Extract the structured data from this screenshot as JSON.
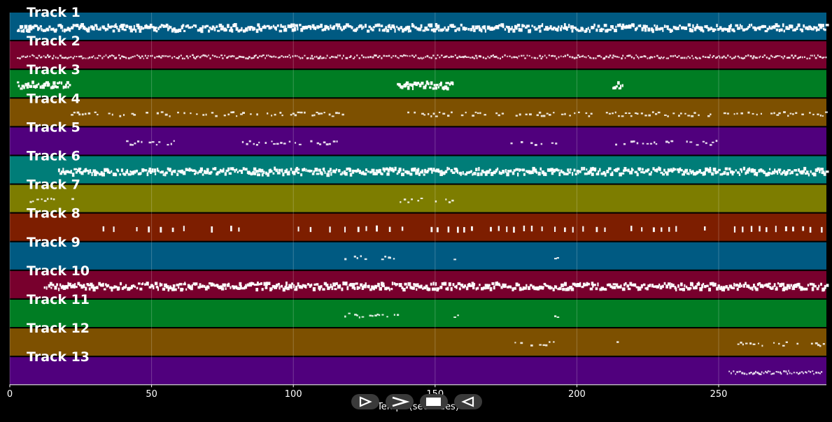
{
  "chart_data": {
    "type": "scatter",
    "xlabel": "Temps (secondes)",
    "xlim": [
      0,
      288
    ],
    "xticks": [
      0,
      50,
      100,
      150,
      200,
      250
    ],
    "grid": true,
    "tracks": [
      {
        "name": "Track 1",
        "color": "#005a82",
        "pattern": "dense",
        "ranges": [
          [
            2.5,
            288
          ]
        ]
      },
      {
        "name": "Track 2",
        "color": "#78002d",
        "pattern": "medium",
        "ranges": [
          [
            2.5,
            288
          ]
        ]
      },
      {
        "name": "Track 3",
        "color": "#007d23",
        "pattern": "dense",
        "ranges": [
          [
            2.5,
            21
          ],
          [
            136.5,
            156.5
          ],
          [
            212.5,
            216.5
          ]
        ]
      },
      {
        "name": "Track 4",
        "color": "#7d5000",
        "pattern": "sparse",
        "ranges": [
          [
            21.5,
            117.5
          ],
          [
            137,
            288
          ]
        ]
      },
      {
        "name": "Track 5",
        "color": "#50007d",
        "pattern": "sparse",
        "ranges": [
          [
            41,
            58.5
          ],
          [
            80.5,
            115.5
          ],
          [
            175.5,
            192.5
          ],
          [
            213.5,
            250.5
          ]
        ]
      },
      {
        "name": "Track 6",
        "color": "#007d78",
        "pattern": "dense",
        "ranges": [
          [
            17,
            288
          ]
        ]
      },
      {
        "name": "Track 7",
        "color": "#7d7d00",
        "pattern": "sparse",
        "ranges": [
          [
            7,
            22
          ],
          [
            137.5,
            156.5
          ]
        ]
      },
      {
        "name": "Track 8",
        "color": "#7d1e00",
        "pattern": "ticks",
        "ranges": [
          [
            23.5,
            288
          ]
        ]
      },
      {
        "name": "Track 9",
        "color": "#005a82",
        "pattern": "sparse",
        "ranges": [
          [
            118,
            136.5
          ],
          [
            156.5,
            158.5
          ],
          [
            192,
            194
          ]
        ]
      },
      {
        "name": "Track 10",
        "color": "#78002d",
        "pattern": "dense",
        "ranges": [
          [
            12,
            288
          ]
        ]
      },
      {
        "name": "Track 11",
        "color": "#007d23",
        "pattern": "sparse",
        "ranges": [
          [
            118,
            136.5
          ],
          [
            156.5,
            158.5
          ],
          [
            192,
            194
          ]
        ]
      },
      {
        "name": "Track 12",
        "color": "#7d5000",
        "pattern": "sparse",
        "ranges": [
          [
            178,
            192.5
          ],
          [
            214,
            216.5
          ],
          [
            232,
            233
          ],
          [
            254,
            288
          ]
        ]
      },
      {
        "name": "Track 13",
        "color": "#50007d",
        "pattern": "medium",
        "ranges": [
          [
            253.5,
            286.5
          ]
        ]
      }
    ]
  },
  "controls": {
    "buttons": [
      {
        "icon": "triangle-play-icon"
      },
      {
        "icon": "chevron-right-icon"
      },
      {
        "icon": "stop-icon"
      },
      {
        "icon": "triangle-back-icon"
      }
    ]
  }
}
